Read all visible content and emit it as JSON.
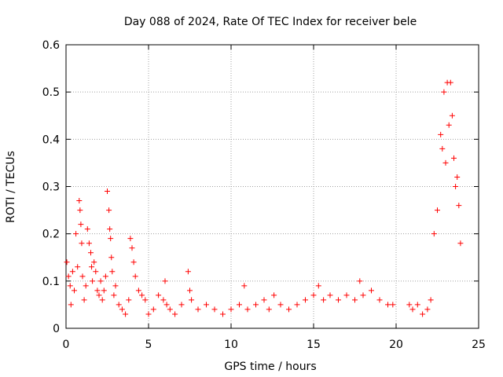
{
  "chart_data": {
    "type": "scatter",
    "title": "Day 088 of 2024, Rate Of TEC Index for receiver bele",
    "xlabel": "GPS time / hours",
    "ylabel": "ROTI / TECUs",
    "xlim": [
      0,
      25
    ],
    "ylim": [
      0,
      0.6
    ],
    "xticks": [
      "0",
      "5",
      "10",
      "15",
      "20",
      "25"
    ],
    "yticks": [
      "0",
      "0.1",
      "0.2",
      "0.3",
      "0.4",
      "0.5",
      "0.6"
    ],
    "grid": true,
    "marker": "plus",
    "color": "#ff0000",
    "series": [
      {
        "x": [
          0.05,
          0.15,
          0.25,
          0.3,
          0.4,
          0.5,
          0.6,
          0.7,
          0.8,
          0.85,
          0.9,
          0.95,
          1.0,
          1.1,
          1.2,
          1.3,
          1.4,
          1.5,
          1.55,
          1.6,
          1.7,
          1.8,
          1.9,
          2.0,
          2.1,
          2.2,
          2.3,
          2.4,
          2.5,
          2.6,
          2.65,
          2.7,
          2.75,
          2.8,
          2.9,
          3.0,
          3.2,
          3.4,
          3.6,
          3.8,
          3.9,
          4.0,
          4.1,
          4.2,
          4.4,
          4.6,
          4.8,
          5.0,
          5.3,
          5.6,
          5.9,
          6.0,
          6.1,
          6.3,
          6.6,
          7.0,
          7.4,
          7.5,
          7.6,
          8.0,
          8.5,
          9.0,
          9.5,
          10.0,
          10.5,
          10.8,
          11.0,
          11.5,
          12.0,
          12.3,
          12.6,
          13.0,
          13.5,
          14.0,
          14.5,
          15.0,
          15.3,
          15.6,
          16.0,
          16.5,
          17.0,
          17.5,
          17.8,
          18.0,
          18.5,
          19.0,
          19.5,
          19.8,
          20.8,
          21.0,
          21.3,
          21.6,
          21.9,
          22.1,
          22.3,
          22.5,
          22.7,
          22.8,
          22.9,
          23.0,
          23.1,
          23.2,
          23.3,
          23.4,
          23.5,
          23.6,
          23.7,
          23.8,
          23.9
        ],
        "y": [
          0.14,
          0.11,
          0.09,
          0.05,
          0.12,
          0.08,
          0.2,
          0.13,
          0.27,
          0.25,
          0.22,
          0.18,
          0.11,
          0.06,
          0.09,
          0.21,
          0.18,
          0.16,
          0.13,
          0.1,
          0.14,
          0.12,
          0.08,
          0.07,
          0.1,
          0.06,
          0.08,
          0.11,
          0.29,
          0.25,
          0.21,
          0.19,
          0.15,
          0.12,
          0.07,
          0.09,
          0.05,
          0.04,
          0.03,
          0.06,
          0.19,
          0.17,
          0.14,
          0.11,
          0.08,
          0.07,
          0.06,
          0.03,
          0.04,
          0.07,
          0.06,
          0.1,
          0.05,
          0.04,
          0.03,
          0.05,
          0.12,
          0.08,
          0.06,
          0.04,
          0.05,
          0.04,
          0.03,
          0.04,
          0.05,
          0.09,
          0.04,
          0.05,
          0.06,
          0.04,
          0.07,
          0.05,
          0.04,
          0.05,
          0.06,
          0.07,
          0.09,
          0.06,
          0.07,
          0.06,
          0.07,
          0.06,
          0.1,
          0.07,
          0.08,
          0.06,
          0.05,
          0.05,
          0.05,
          0.04,
          0.05,
          0.03,
          0.04,
          0.06,
          0.2,
          0.25,
          0.41,
          0.38,
          0.5,
          0.35,
          0.52,
          0.43,
          0.52,
          0.45,
          0.36,
          0.3,
          0.32,
          0.26,
          0.18
        ]
      }
    ]
  }
}
